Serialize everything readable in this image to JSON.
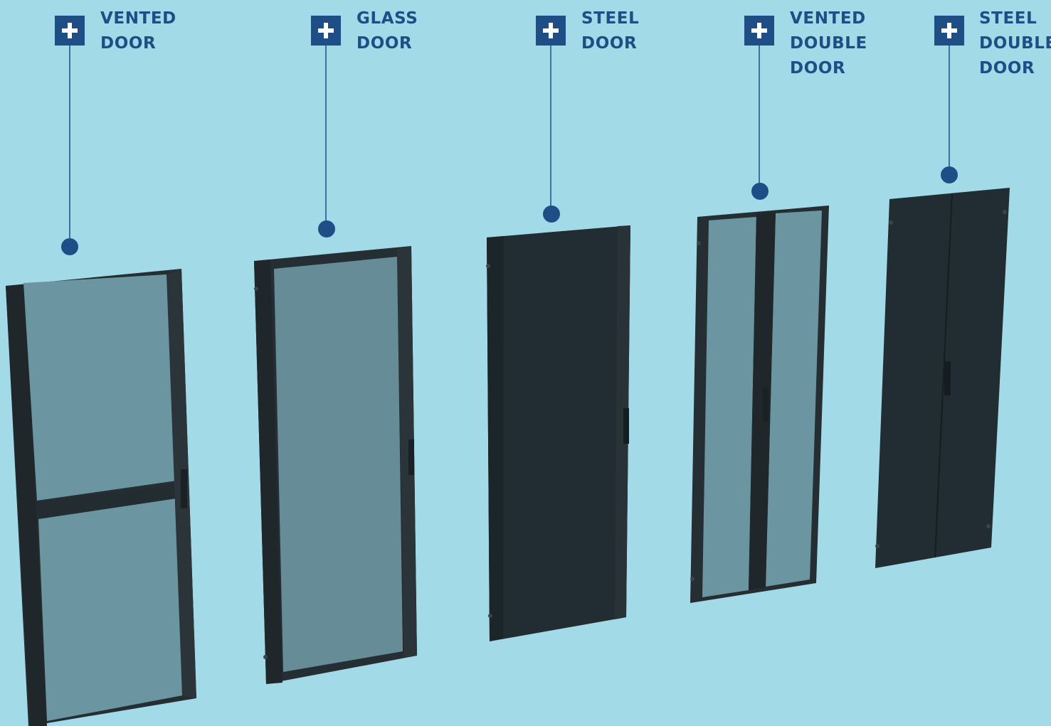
{
  "colors": {
    "background": "#a3dae7",
    "accent": "#1f4d85",
    "door_frame": "#252e33",
    "door_panel_steel": "#222d33",
    "door_panel_glass": "#678c97"
  },
  "hotspots": [
    {
      "icon": "plus-icon",
      "line1": "VENTED",
      "line2": "DOOR",
      "line3": ""
    },
    {
      "icon": "plus-icon",
      "line1": "GLASS",
      "line2": "DOOR",
      "line3": ""
    },
    {
      "icon": "plus-icon",
      "line1": "STEEL",
      "line2": "DOOR",
      "line3": ""
    },
    {
      "icon": "plus-icon",
      "line1": "VENTED",
      "line2": "DOUBLE",
      "line3": "DOOR"
    },
    {
      "icon": "plus-icon",
      "line1": "STEEL",
      "line2": "DOUBLE",
      "line3": "DOOR"
    }
  ]
}
